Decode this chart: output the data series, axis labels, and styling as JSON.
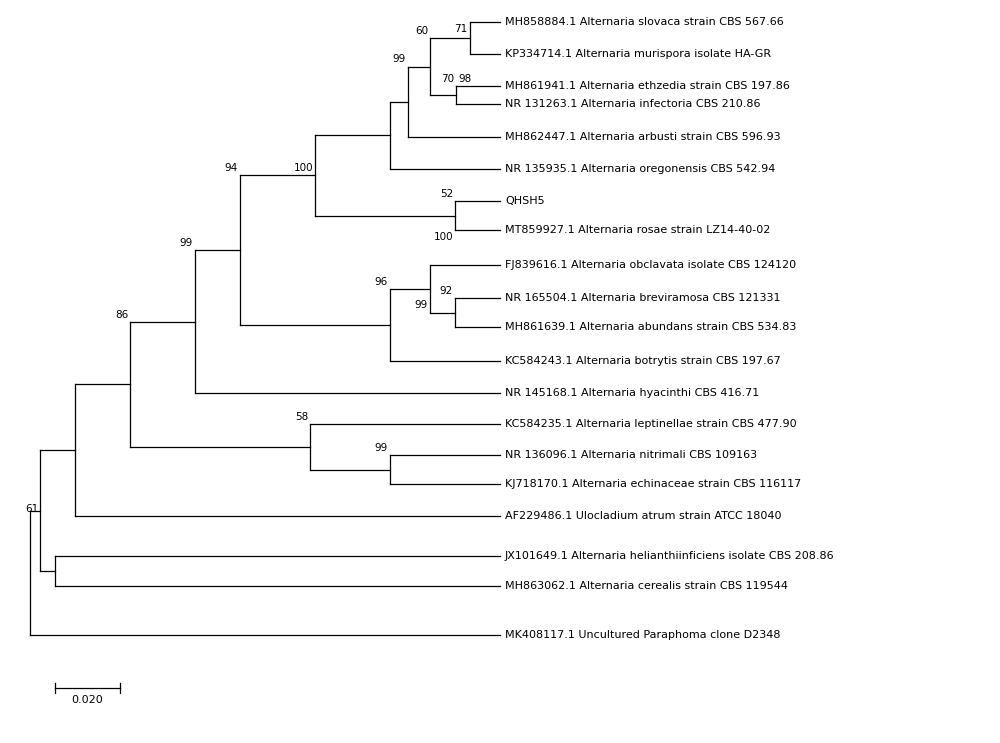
{
  "taxa": [
    "MH858884.1 Alternaria slovaca strain CBS 567.66",
    "KP334714.1 Alternaria murispora isolate HA-GR",
    "MH861941.1 Alternaria ethzedia strain CBS 197.86",
    "NR 131263.1 Alternaria infectoria CBS 210.86",
    "MH862447.1 Alternaria arbusti strain CBS 596.93",
    "NR 135935.1 Alternaria oregonensis CBS 542.94",
    "QHSH5",
    "MT859927.1 Alternaria rosae strain LZ14-40-02",
    "FJ839616.1 Alternaria obclavata isolate CBS 124120",
    "NR 165504.1 Alternaria breviramosa CBS 121331",
    "MH861639.1 Alternaria abundans strain CBS 534.83",
    "KC584243.1 Alternaria botrytis strain CBS 197.67",
    "NR 145168.1 Alternaria hyacinthi CBS 416.71",
    "KC584235.1 Alternaria leptinellae strain CBS 477.90",
    "NR 136096.1 Alternaria nitrimali CBS 109163",
    "KJ718170.1 Alternaria echinaceae strain CBS 116117",
    "AF229486.1 Ulocladium atrum strain ATCC 18040",
    "JX101649.1 Alternaria helianthiinficiens isolate CBS 208.86",
    "MH863062.1 Alternaria cerealis strain CBS 119544",
    "MK408117.1 Uncultured Paraphoma clone D2348"
  ],
  "bold_taxa": [],
  "background_color": "#ffffff",
  "line_color": "#000000",
  "font_size": 8.0,
  "scale_bar_label": "0.020"
}
